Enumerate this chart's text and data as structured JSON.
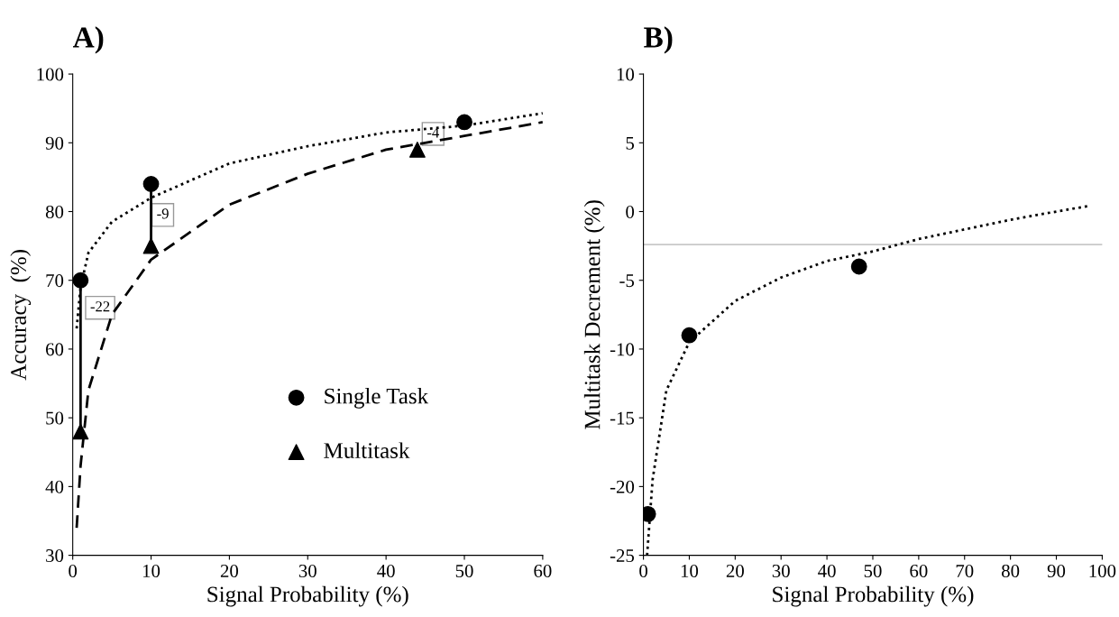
{
  "chart_data": [
    {
      "type": "scatter",
      "title": "A)",
      "xlabel": "Signal Probability (%)",
      "ylabel": "Accuracy  (%)",
      "xlim": [
        0,
        60
      ],
      "xticks": [
        0,
        10,
        20,
        30,
        40,
        50,
        60
      ],
      "ylim": [
        30,
        100
      ],
      "yticks": [
        30,
        40,
        50,
        60,
        70,
        80,
        90,
        100
      ],
      "grid": false,
      "legend": "bottom right",
      "series": [
        {
          "name": "Single Task",
          "marker": "circle",
          "color": "#000000",
          "x": [
            1,
            10,
            50
          ],
          "values": [
            70,
            84,
            93
          ]
        },
        {
          "name": "Multitask",
          "marker": "triangle",
          "color": "#000000",
          "x": [
            1,
            10,
            44
          ],
          "values": [
            48,
            75,
            89
          ]
        },
        {
          "type": "line",
          "line_style": "dotted",
          "color": "#000000",
          "x": [
            0.5,
            1,
            2,
            5,
            10,
            20,
            30,
            40,
            50,
            60
          ],
          "values": [
            63,
            69,
            74,
            78.5,
            82,
            87,
            89.5,
            91.5,
            92.5,
            94.3
          ]
        },
        {
          "type": "line",
          "line_style": "dashed",
          "color": "#000000",
          "x": [
            0.5,
            1,
            2,
            5,
            10,
            20,
            30,
            40,
            50,
            60
          ],
          "values": [
            34,
            43,
            54,
            65,
            73,
            81,
            85.5,
            89,
            91,
            93
          ]
        },
        {
          "type": "line",
          "line_style": "solid",
          "color": "#000000",
          "x": [
            1,
            1
          ],
          "values": [
            48,
            70
          ]
        },
        {
          "type": "line",
          "line_style": "solid",
          "color": "#000000",
          "x": [
            10,
            10
          ],
          "values": [
            75,
            84
          ]
        }
      ],
      "annotations": [
        {
          "text": "-22",
          "x": 3.5,
          "y": 66
        },
        {
          "text": "-9",
          "x": 11.5,
          "y": 79.5
        },
        {
          "text": "-4",
          "x": 46,
          "y": 91.3
        }
      ]
    },
    {
      "type": "scatter",
      "title": "B)",
      "xlabel": "Signal Probability (%)",
      "ylabel": "Multitask Decrement (%)",
      "xlim": [
        0,
        100
      ],
      "xticks": [
        0,
        10,
        20,
        30,
        40,
        50,
        60,
        70,
        80,
        90,
        100
      ],
      "ylim": [
        -25,
        10
      ],
      "yticks": [
        -25,
        -20,
        -15,
        -10,
        -5,
        0,
        5,
        10
      ],
      "grid": false,
      "series": [
        {
          "marker": "circle",
          "color": "#000000",
          "x": [
            1,
            10,
            47
          ],
          "values": [
            -22,
            -9,
            -4
          ]
        },
        {
          "type": "line",
          "line_style": "dotted",
          "color": "#000000",
          "x": [
            0.8,
            2,
            5,
            10,
            20,
            30,
            40,
            50,
            60,
            70,
            80,
            90,
            97
          ],
          "values": [
            -25,
            -19.5,
            -13,
            -9.5,
            -6.5,
            -4.8,
            -3.6,
            -2.9,
            -2,
            -1.3,
            -0.6,
            0,
            0.4
          ]
        }
      ],
      "ref_lines": [
        {
          "axis": "y",
          "value": -2.4,
          "color": "#c8c8c8",
          "line_style": "solid"
        }
      ]
    }
  ]
}
